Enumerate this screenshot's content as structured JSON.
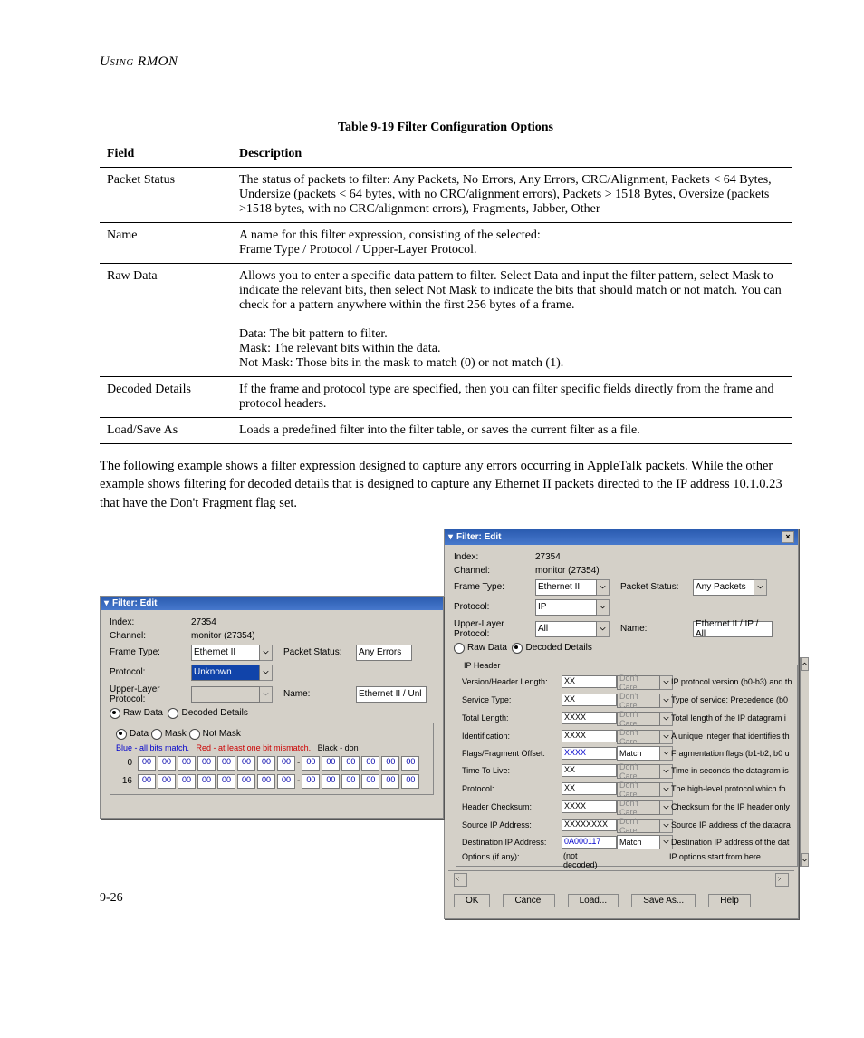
{
  "header": "Using RMON",
  "table_caption": "Table 9-19  Filter Configuration Options",
  "columns": [
    "Field",
    "Description"
  ],
  "rows": [
    [
      "Packet Status",
      "The status of packets to filter: Any Packets, No Errors, Any Errors, CRC/Alignment, Packets < 64 Bytes, Undersize (packets < 64 bytes, with no CRC/alignment errors), Packets > 1518 Bytes, Oversize (packets >1518 bytes, with no CRC/alignment errors), Fragments, Jabber, Other"
    ],
    [
      "Name",
      "A name for this filter expression, consisting of the selected:\nFrame Type / Protocol / Upper-Layer Protocol."
    ],
    [
      "Raw Data",
      "Allows you to enter a specific data pattern to filter. Select Data and input the filter pattern, select Mask to indicate the relevant bits, then select Not Mask to indicate the bits that should match or not match. You can check for a pattern anywhere within the first 256 bytes of a frame.\n\nData: The bit pattern to filter.\nMask: The relevant bits within the data.\nNot Mask: Those bits in the mask to match (0) or not match (1)."
    ],
    [
      "Decoded Details",
      "If the frame and protocol type are specified, then you can filter specific fields directly from the frame and protocol headers."
    ],
    [
      "Load/Save As",
      "Loads a predefined filter into the filter table, or saves the current filter as a file."
    ]
  ],
  "paragraph": "The following example shows a filter expression designed to capture any errors occurring in AppleTalk packets. While the other example shows filtering for decoded details that is designed to capture any Ethernet II packets directed to the IP address 10.1.0.23 that have the Don't Fragment flag set.",
  "page_num": "9-26",
  "win1": {
    "title": "Filter: Edit",
    "index_lbl": "Index:",
    "index_val": "27354",
    "channel_lbl": "Channel:",
    "channel_val": "monitor (27354)",
    "frame_lbl": "Frame Type:",
    "frame_val": "Ethernet II",
    "pktstatus_lbl": "Packet Status:",
    "pktstatus_val": "Any Errors",
    "proto_lbl": "Protocol:",
    "proto_val": "Unknown",
    "upper_lbl": "Upper-Layer Protocol:",
    "name_lbl": "Name:",
    "name_val": "Ethernet II / Unl",
    "raw_lbl": "Raw Data",
    "decoded_lbl": "Decoded Details",
    "data_lbl": "Data",
    "mask_lbl": "Mask",
    "notmask_lbl": "Not Mask",
    "legend_blue": "Blue - all bits match.",
    "legend_red": "Red - at least one bit mismatch.",
    "legend_black": "Black - don",
    "hexrow0": "0",
    "hexrow16": "16",
    "hex": "00"
  },
  "win2": {
    "title": "Filter: Edit",
    "index_lbl": "Index:",
    "index_val": "27354",
    "channel_lbl": "Channel:",
    "channel_val": "monitor (27354)",
    "frame_lbl": "Frame Type:",
    "frame_val": "Ethernet II",
    "pktstatus_lbl": "Packet Status:",
    "pktstatus_val": "Any Packets",
    "proto_lbl": "Protocol:",
    "proto_val": "IP",
    "upper_lbl": "Upper-Layer Protocol:",
    "upper_val": "All",
    "name_lbl": "Name:",
    "name_val": "Ethernet II / IP / All",
    "raw_lbl": "Raw Data",
    "decoded_lbl": "Decoded Details",
    "group": "IP Header",
    "rows": [
      {
        "l": "Version/Header Length:",
        "v": "XX",
        "m": "Don't Care",
        "d": "IP protocol version (b0-b3) and th"
      },
      {
        "l": "Service Type:",
        "v": "XX",
        "m": "Don't Care",
        "d": "Type of service: Precedence (b0"
      },
      {
        "l": "Total Length:",
        "v": "XXXX",
        "m": "Don't Care",
        "d": "Total length of the IP datagram i"
      },
      {
        "l": "Identification:",
        "v": "XXXX",
        "m": "Don't Care",
        "d": "A unique integer that identifies th"
      },
      {
        "l": "Flags/Fragment Offset:",
        "v": "XXXX",
        "m": "Match",
        "d": "Fragmentation flags (b1-b2, b0 u"
      },
      {
        "l": "Time To Live:",
        "v": "XX",
        "m": "Don't Care",
        "d": "Time in seconds the datagram is"
      },
      {
        "l": "Protocol:",
        "v": "XX",
        "m": "Don't Care",
        "d": "The high-level protocol which fo"
      },
      {
        "l": "Header Checksum:",
        "v": "XXXX",
        "m": "Don't Care",
        "d": "Checksum for the IP header only"
      },
      {
        "l": "Source IP Address:",
        "v": "XXXXXXXX",
        "m": "Don't Care",
        "d": "Source IP address of the datagra"
      },
      {
        "l": "Destination IP Address:",
        "v": "0A000117",
        "m": "Match",
        "d": "Destination IP address of the dat"
      },
      {
        "l": "Options (if any):",
        "v": "(not decoded)",
        "m": "",
        "d": "IP options start from here."
      }
    ],
    "btn_ok": "OK",
    "btn_cancel": "Cancel",
    "btn_load": "Load...",
    "btn_save": "Save As...",
    "btn_help": "Help"
  }
}
